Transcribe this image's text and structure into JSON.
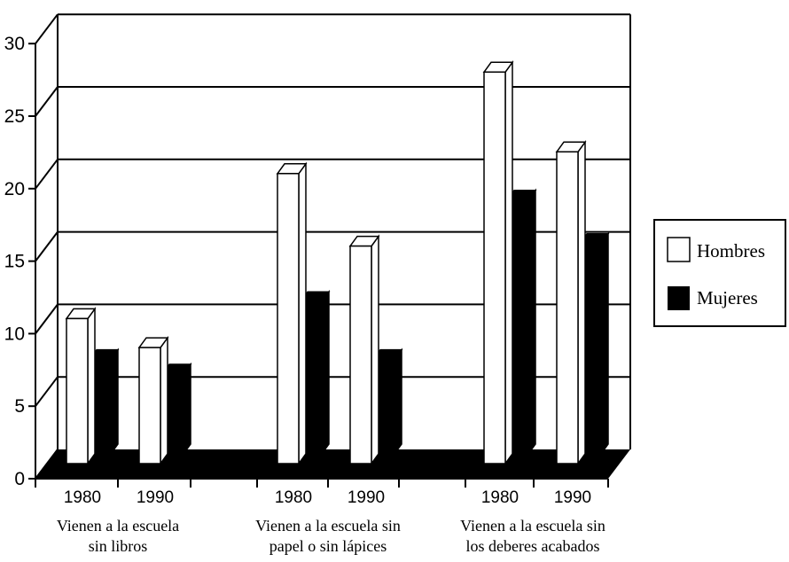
{
  "chart_data": {
    "type": "bar",
    "style": "3d",
    "yticks": [
      0,
      5,
      10,
      15,
      20,
      25,
      30
    ],
    "ylim": [
      0,
      30
    ],
    "grid": true,
    "legend_position": "right",
    "groups": [
      {
        "label_lines": [
          "Vienen a la escuela",
          "sin libros"
        ],
        "years": [
          "1980",
          "1990"
        ],
        "hombres": [
          10,
          8
        ],
        "mujeres": [
          6.5,
          5.5
        ]
      },
      {
        "label_lines": [
          "Vienen a la escuela sin",
          "papel o sin lápices"
        ],
        "years": [
          "1980",
          "1990"
        ],
        "hombres": [
          20,
          15
        ],
        "mujeres": [
          10.5,
          6.5
        ]
      },
      {
        "label_lines": [
          "Vienen a la escuela sin",
          "los deberes acabados"
        ],
        "years": [
          "1980",
          "1990"
        ],
        "hombres": [
          27,
          21.5
        ],
        "mujeres": [
          17.5,
          14.5
        ]
      }
    ],
    "series": [
      {
        "name": "Hombres",
        "color": "#ffffff"
      },
      {
        "name": "Mujeres",
        "color": "#000000"
      }
    ]
  }
}
